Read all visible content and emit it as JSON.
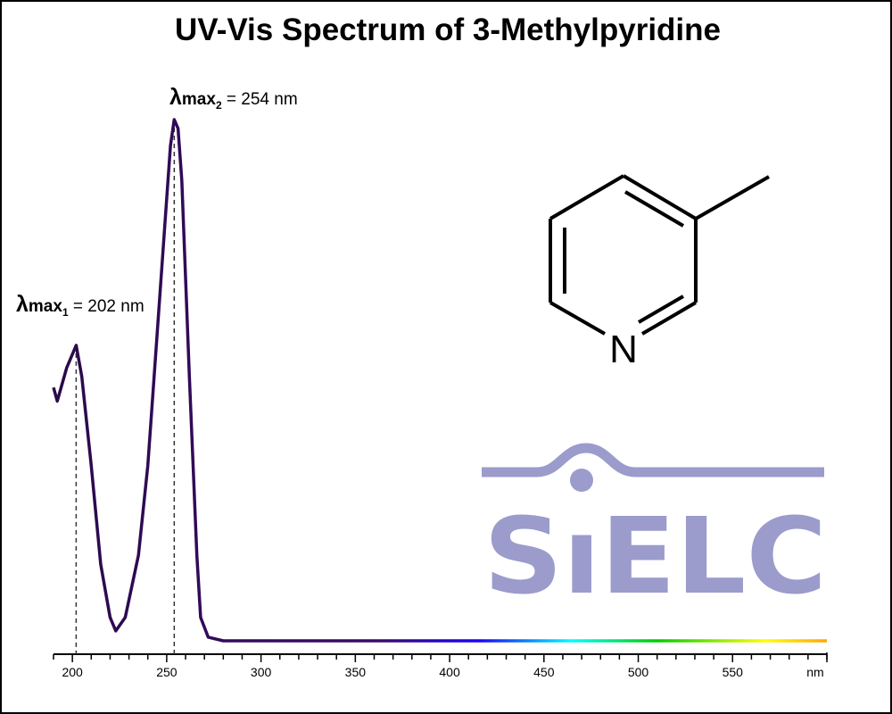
{
  "chart_data": {
    "type": "line",
    "title": "UV-Vis Spectrum of 3-Methylpyridine",
    "xlabel": "nm",
    "ylabel": "",
    "xlim": [
      190,
      600
    ],
    "ylim": [
      0,
      1.0
    ],
    "x_ticks": [
      200,
      250,
      300,
      350,
      400,
      450,
      500,
      550
    ],
    "x_minor_step": 10,
    "y_axis_shown": false,
    "grid": false,
    "series": [
      {
        "x": [
          190,
          192,
          197,
          202,
          205,
          210,
          215,
          220,
          223,
          228,
          235,
          240,
          245,
          250,
          252,
          254,
          256,
          258,
          262,
          266,
          268,
          272,
          280,
          300,
          350,
          400,
          450,
          500,
          550,
          600
        ],
        "y": [
          0.486,
          0.46,
          0.524,
          0.567,
          0.507,
          0.336,
          0.147,
          0.045,
          0.019,
          0.045,
          0.164,
          0.336,
          0.592,
          0.849,
          0.95,
          1.0,
          0.983,
          0.884,
          0.507,
          0.164,
          0.045,
          0.007,
          0.0,
          0.0,
          0.0,
          0.0,
          0.0,
          0.0,
          0.0,
          0.0
        ]
      }
    ],
    "annotations": [
      {
        "symbol": "λ",
        "sub": "max",
        "index": "1",
        "text": " = 202 nm",
        "x": 202
      },
      {
        "symbol": "λ",
        "sub": "max",
        "index": "2",
        "text": " = 254 nm",
        "x": 254
      }
    ],
    "line_color": "#2a0a4a",
    "spectrum_colors": [
      "#2a0a4a",
      "#2a0a4a",
      "#0000ff",
      "#00ffff",
      "#00cc00",
      "#ffff00",
      "#ffa500"
    ]
  },
  "molecule": {
    "atom_label": "N"
  },
  "logo": {
    "text": "SIELC",
    "color": "#9b9bcc"
  }
}
